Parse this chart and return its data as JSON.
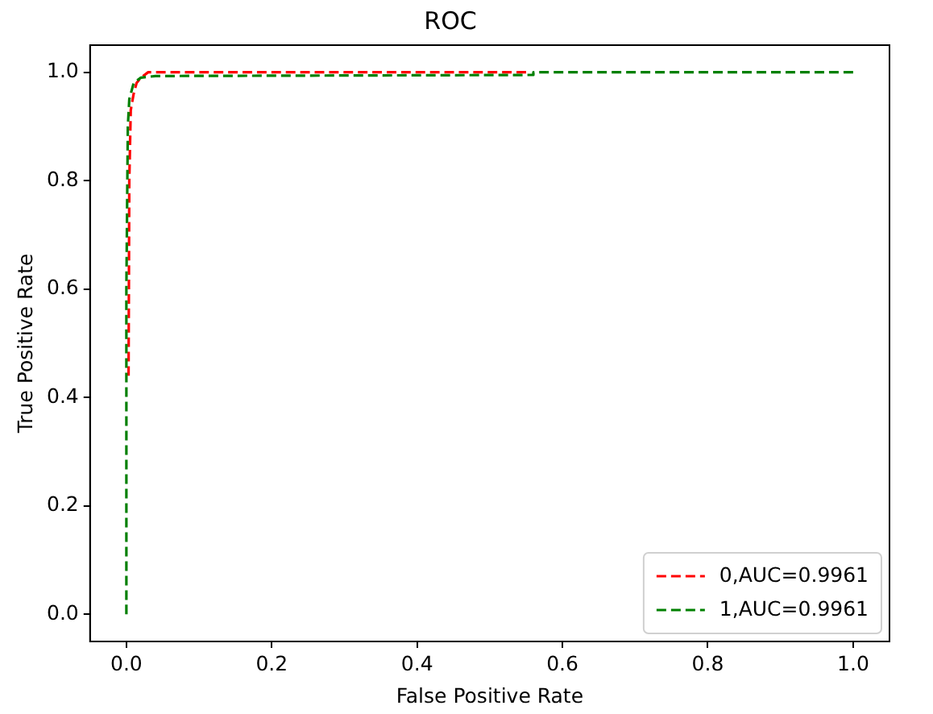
{
  "chart_data": {
    "type": "line",
    "title": "ROC",
    "xlabel": "False Positive Rate",
    "ylabel": "True Positive Rate",
    "xlim": [
      -0.05,
      1.05
    ],
    "ylim": [
      -0.05,
      1.05
    ],
    "xticks": [
      {
        "value": 0,
        "label": "0.0"
      },
      {
        "value": 0.2,
        "label": "0.2"
      },
      {
        "value": 0.4,
        "label": "0.4"
      },
      {
        "value": 0.6,
        "label": "0.6"
      },
      {
        "value": 0.8,
        "label": "0.8"
      },
      {
        "value": 1,
        "label": "1.0"
      }
    ],
    "yticks": [
      {
        "value": 0,
        "label": "0.0"
      },
      {
        "value": 0.2,
        "label": "0.2"
      },
      {
        "value": 0.4,
        "label": "0.4"
      },
      {
        "value": 0.6,
        "label": "0.6"
      },
      {
        "value": 0.8,
        "label": "0.8"
      },
      {
        "value": 1,
        "label": "1.0"
      }
    ],
    "series": [
      {
        "name": "0,AUC=0.9961",
        "color": "#ff0000",
        "x": [
          0.003,
          0.004,
          0.006,
          0.01,
          0.014,
          0.02,
          0.03,
          0.55
        ],
        "values": [
          0.44,
          0.8,
          0.93,
          0.96,
          0.98,
          0.99,
          1,
          1
        ]
      },
      {
        "name": "1,AUC=0.9961",
        "color": "#008000",
        "x": [
          0,
          0,
          0.002,
          0.004,
          0.01,
          0.02,
          0.04,
          0.56,
          0.56,
          1
        ],
        "values": [
          0,
          0.6,
          0.9,
          0.95,
          0.98,
          0.99,
          0.993,
          0.995,
          1,
          1
        ]
      }
    ],
    "legend": "bottom right",
    "line_style": "dashed",
    "grid": false
  }
}
